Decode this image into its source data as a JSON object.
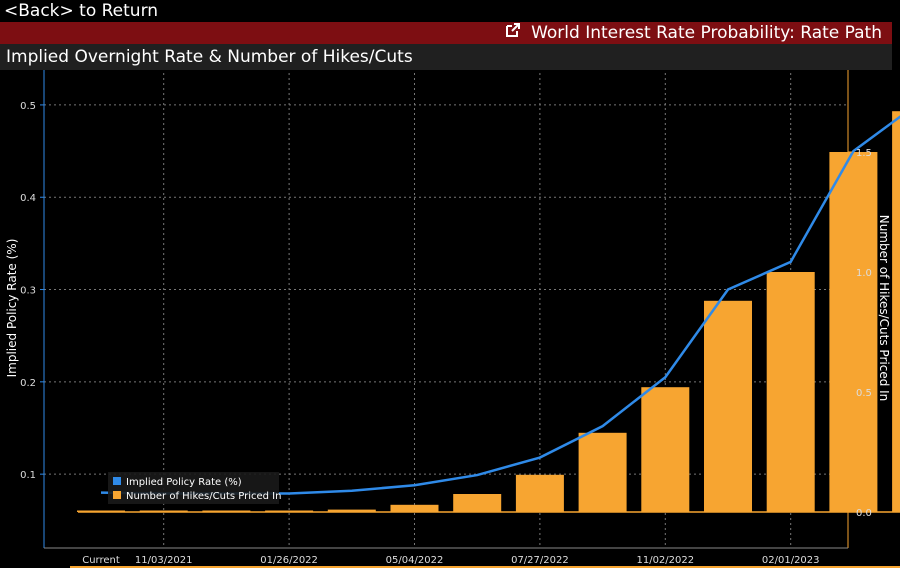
{
  "nav": {
    "back_text": "<Back> to Return"
  },
  "header": {
    "title": "World Interest Rate Probability: Rate Path",
    "icon": "launch-icon"
  },
  "subheader": {
    "title": "Implied Overnight Rate & Number of Hikes/Cuts"
  },
  "colors": {
    "bar": "#f7a531",
    "line": "#2f8ae8",
    "header_bg": "#7d0e12",
    "background": "#000000"
  },
  "chart_data": {
    "type": "bar",
    "title": "Implied Overnight Rate & Number of Hikes/Cuts",
    "xlabel": "",
    "ylabel": "Implied Policy Rate (%)",
    "y2label": "Number of Hikes/Cuts Priced In",
    "ylim": [
      0.02,
      0.54
    ],
    "y2lim": [
      -0.15,
      1.85
    ],
    "yticks": [
      "0.1",
      "0.2",
      "0.3",
      "0.4",
      "0.5"
    ],
    "y2ticks": [
      "0.0",
      "0.5",
      "1.0",
      "1.5"
    ],
    "ytick_values": [
      0.1,
      0.2,
      0.3,
      0.4,
      0.5
    ],
    "y2tick_values": [
      0.0,
      0.5,
      1.0,
      1.5
    ],
    "xtick_labels": [
      "Current",
      "11/03/2021",
      "01/26/2022",
      "05/04/2022",
      "07/27/2022",
      "11/02/2022",
      "02/01/2023"
    ],
    "xtick_positions": [
      0,
      1,
      3,
      5,
      7,
      9,
      11
    ],
    "series": [
      {
        "name": "Implied Policy Rate (%)",
        "kind": "line",
        "axis": "left",
        "values": [
          0.08,
          0.079,
          0.079,
          0.079,
          0.082,
          0.088,
          0.099,
          0.118,
          0.152,
          0.205,
          0.3,
          0.33,
          0.45,
          0.5
        ]
      },
      {
        "name": "Number of Hikes/Cuts Priced In",
        "kind": "bar",
        "axis": "right",
        "values": [
          0.0,
          0.0,
          0.0,
          0.0,
          0.01,
          0.03,
          0.075,
          0.155,
          0.33,
          0.52,
          0.88,
          1.0,
          1.5,
          1.67
        ]
      }
    ],
    "legend": {
      "position": "bottom-left"
    },
    "grid": true
  }
}
